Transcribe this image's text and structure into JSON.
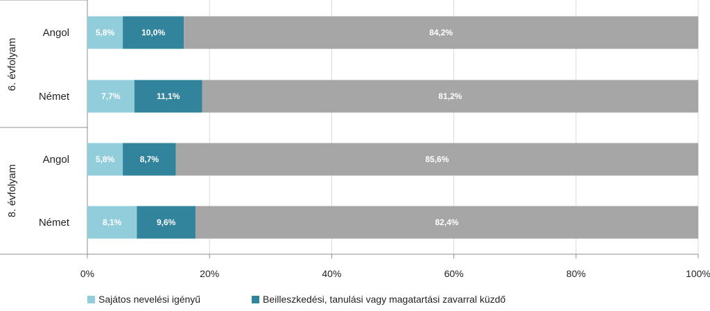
{
  "chart_data": {
    "type": "bar",
    "orientation": "horizontal",
    "stacked": true,
    "groups": [
      {
        "label": "6. évfolyam",
        "categories": [
          "Angol",
          "Német"
        ]
      },
      {
        "label": "8. évfolyam",
        "categories": [
          "Angol",
          "Német"
        ]
      }
    ],
    "series": [
      {
        "name": "Sajátos nevelési igényű",
        "color": "#92cddc",
        "values": [
          5.8,
          7.7,
          5.8,
          8.1
        ],
        "labels": [
          "5,8%",
          "7,7%",
          "5,8%",
          "8,1%"
        ]
      },
      {
        "name": "Beilleszkedési, tanulási vagy magatartási zavarral küzdő",
        "color": "#31849b",
        "values": [
          10.0,
          11.1,
          8.7,
          9.6
        ],
        "labels": [
          "10,0%",
          "11,1%",
          "8,7%",
          "9,6%"
        ]
      },
      {
        "name": "",
        "color": "#a6a6a6",
        "values": [
          84.2,
          81.2,
          85.6,
          82.4
        ],
        "labels": [
          "84,2%",
          "81,2%",
          "85,6%",
          "82,4%"
        ]
      }
    ],
    "xlim": [
      0,
      100
    ],
    "xticks": [
      "0%",
      "20%",
      "40%",
      "60%",
      "80%",
      "100%"
    ],
    "gridlines": true,
    "legend_position": "bottom-left",
    "legend_entries": [
      "Sajátos nevelési igényű",
      "Beilleszkedési, tanulási vagy magatartási zavarral küzdő"
    ]
  }
}
